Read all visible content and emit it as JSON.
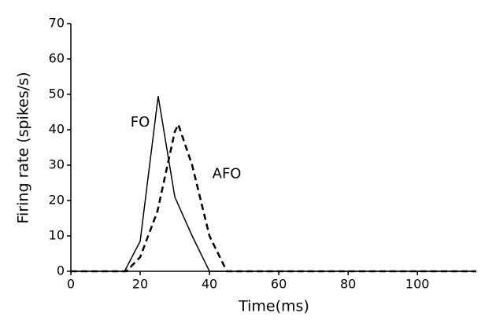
{
  "chart_data": {
    "type": "line",
    "xlabel": "Time(ms)",
    "ylabel": "Firing rate (spikes/s)",
    "xlim": [
      0,
      117
    ],
    "xticks": [
      0,
      20,
      40,
      60,
      80,
      100
    ],
    "ylim": [
      0,
      70
    ],
    "yticks": [
      0,
      10,
      20,
      30,
      40,
      50,
      60,
      70
    ],
    "series": [
      {
        "name": "FO",
        "color": "#000000",
        "style": "solid",
        "x": [
          0,
          15.5,
          20,
          25.2,
          30,
          35,
          40,
          117
        ],
        "values": [
          0,
          0,
          8.5,
          49.5,
          21,
          10,
          0,
          0
        ],
        "label_at": [
          20,
          42
        ]
      },
      {
        "name": "AFO",
        "color": "#000000",
        "style": "dashed",
        "x": [
          0,
          16,
          20,
          25,
          30,
          31,
          35,
          40,
          45,
          117
        ],
        "values": [
          0,
          0,
          4,
          17,
          39.5,
          41.5,
          30,
          10,
          0,
          0
        ],
        "label_at": [
          45,
          27.5
        ]
      }
    ]
  }
}
